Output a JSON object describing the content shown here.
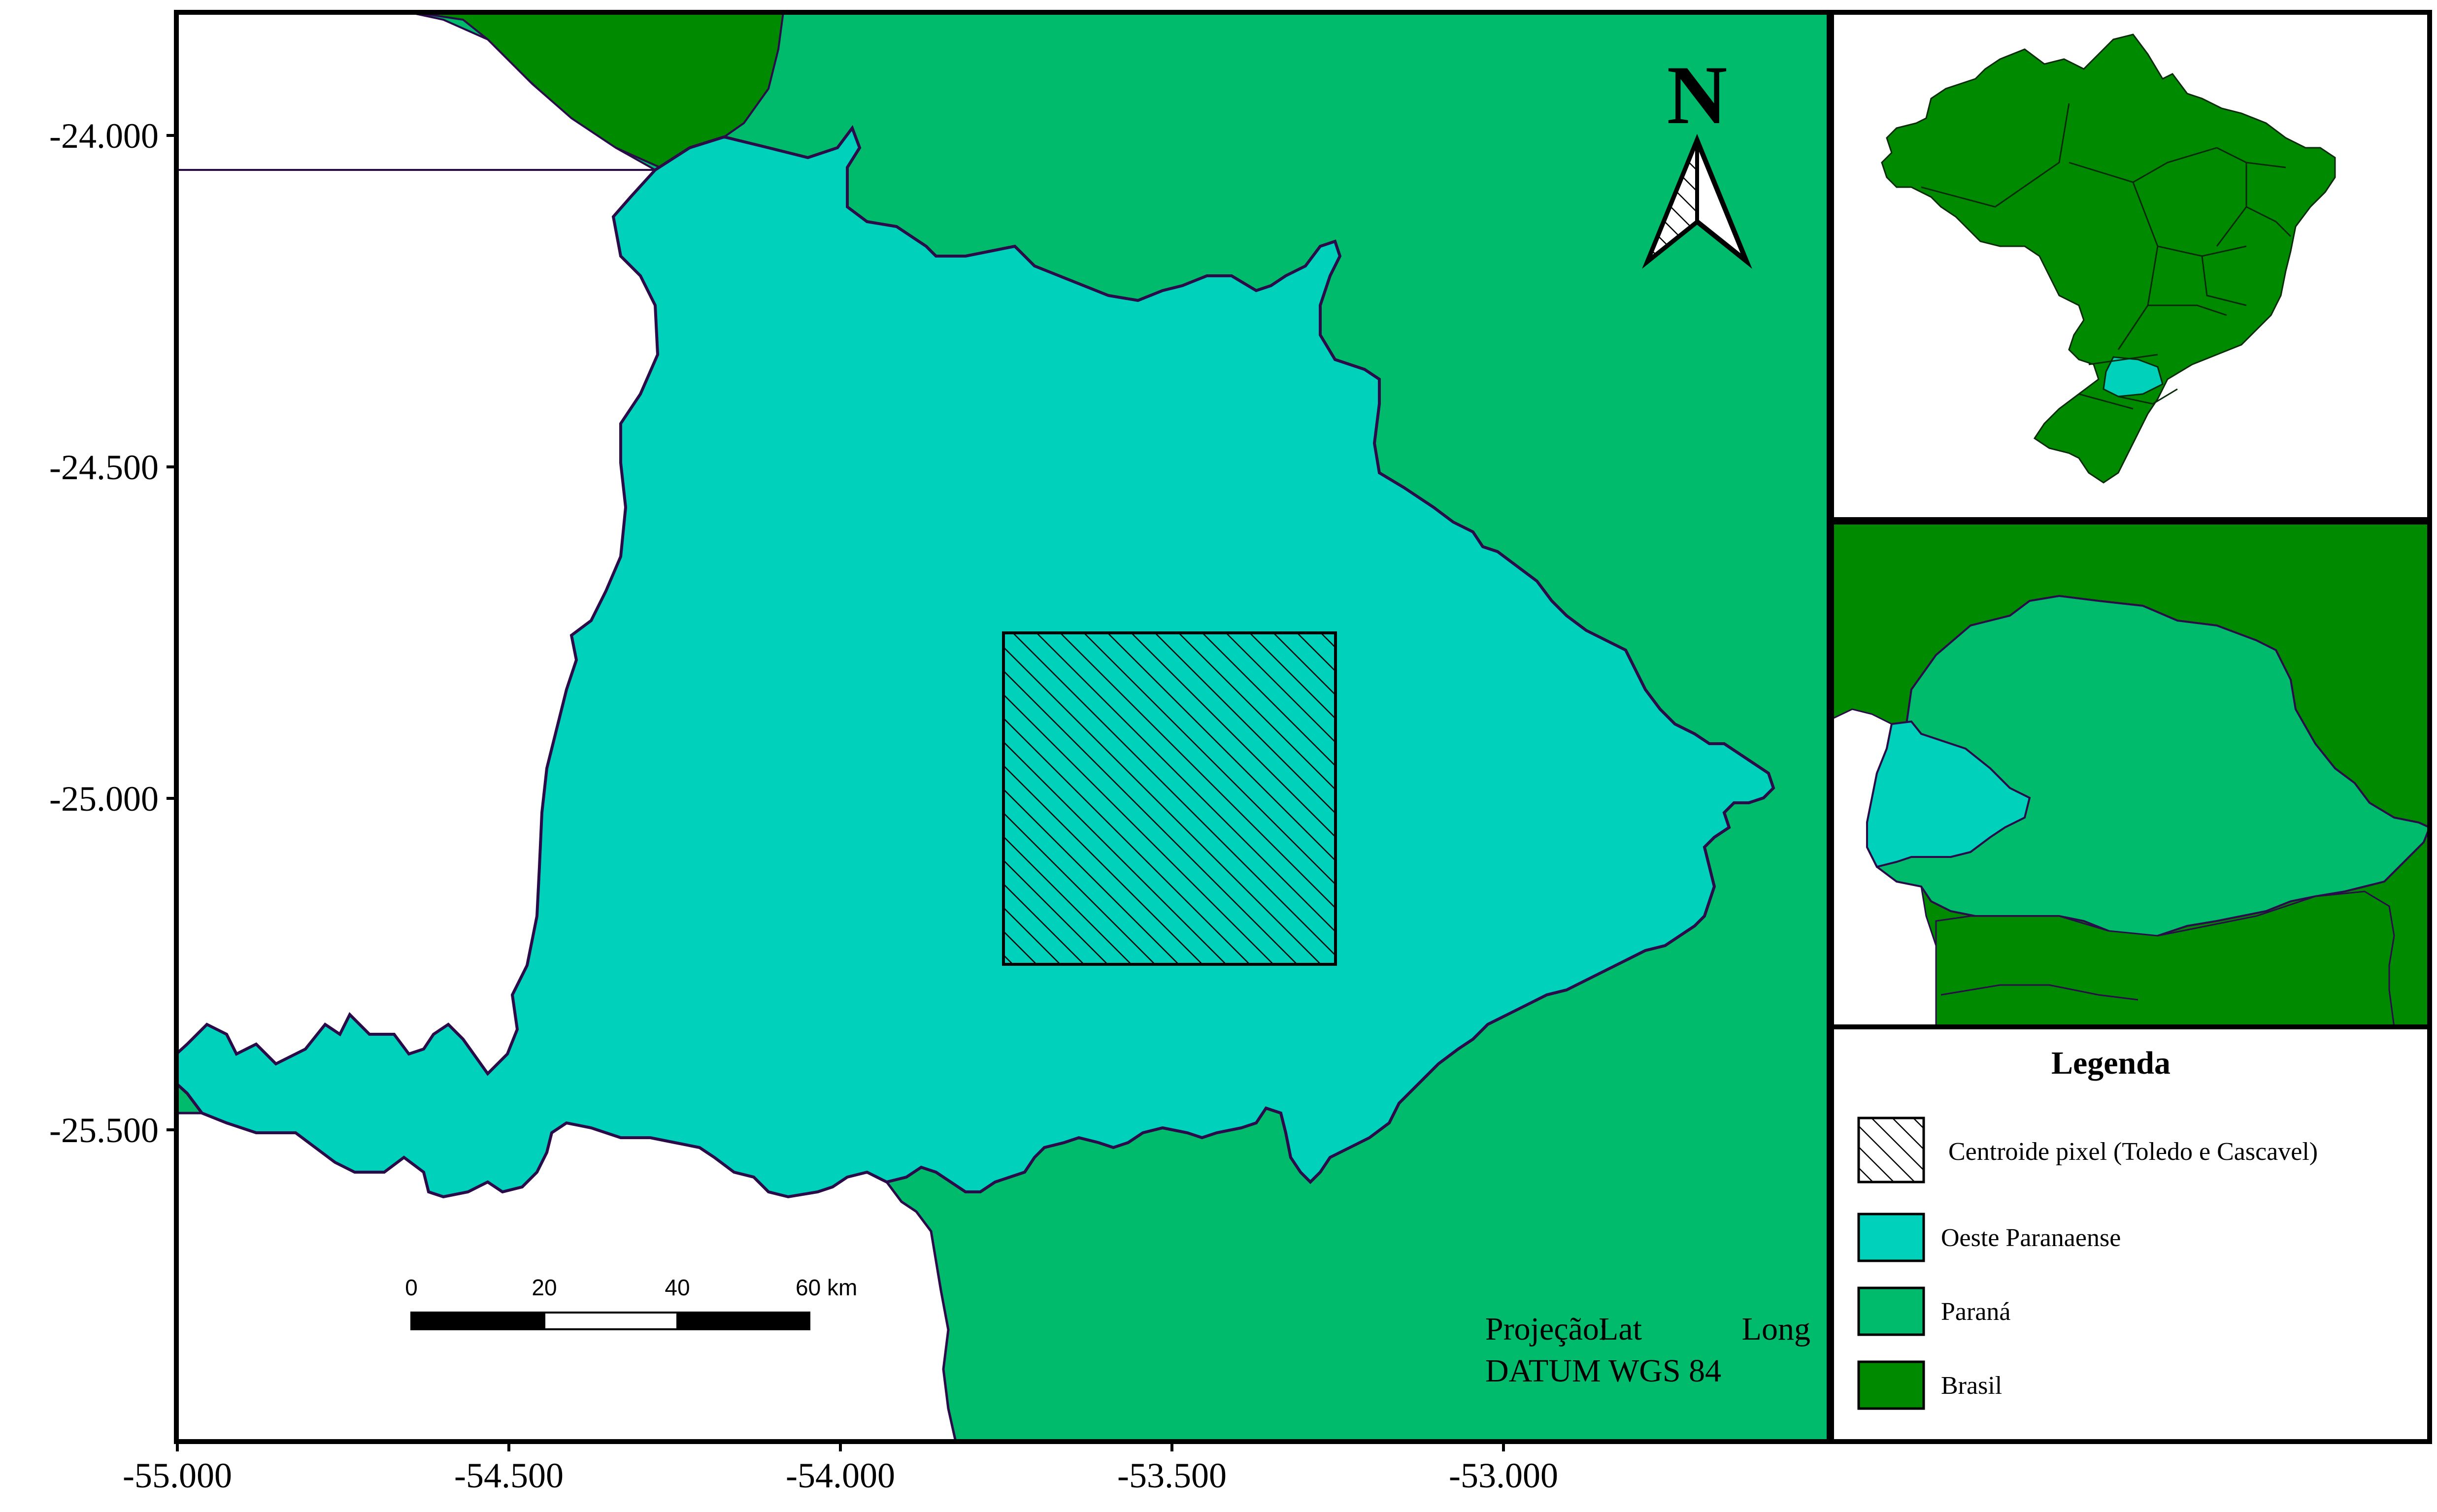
{
  "map": {
    "x_ticks": [
      "-55.000",
      "-54.500",
      "-54.000",
      "-53.500",
      "-53.000"
    ],
    "y_ticks": [
      "-24.000",
      "-24.500",
      "-25.000",
      "-25.500"
    ],
    "north_label": "N",
    "projection_line1_words": [
      "Projeção:",
      "Lat",
      "Long"
    ],
    "projection_line2": "DATUM WGS 84",
    "scale_labels": [
      "0",
      "20",
      "40",
      "60 km"
    ]
  },
  "legend": {
    "title": "Legenda",
    "items": [
      {
        "label": "Centroide pixel (Toledo e Cascavel)",
        "swatch": "hatch"
      },
      {
        "label": "Oeste Paranaense",
        "swatch": "#00d1bb"
      },
      {
        "label": "Paraná",
        "swatch": "#00bb6b"
      },
      {
        "label": "Brasil",
        "swatch": "#008a00"
      }
    ]
  },
  "colors": {
    "brasil": "#008a00",
    "parana": "#00bb6b",
    "oeste": "#00d1bb",
    "outside": "#ffffff",
    "border": "#2b0a4a"
  }
}
